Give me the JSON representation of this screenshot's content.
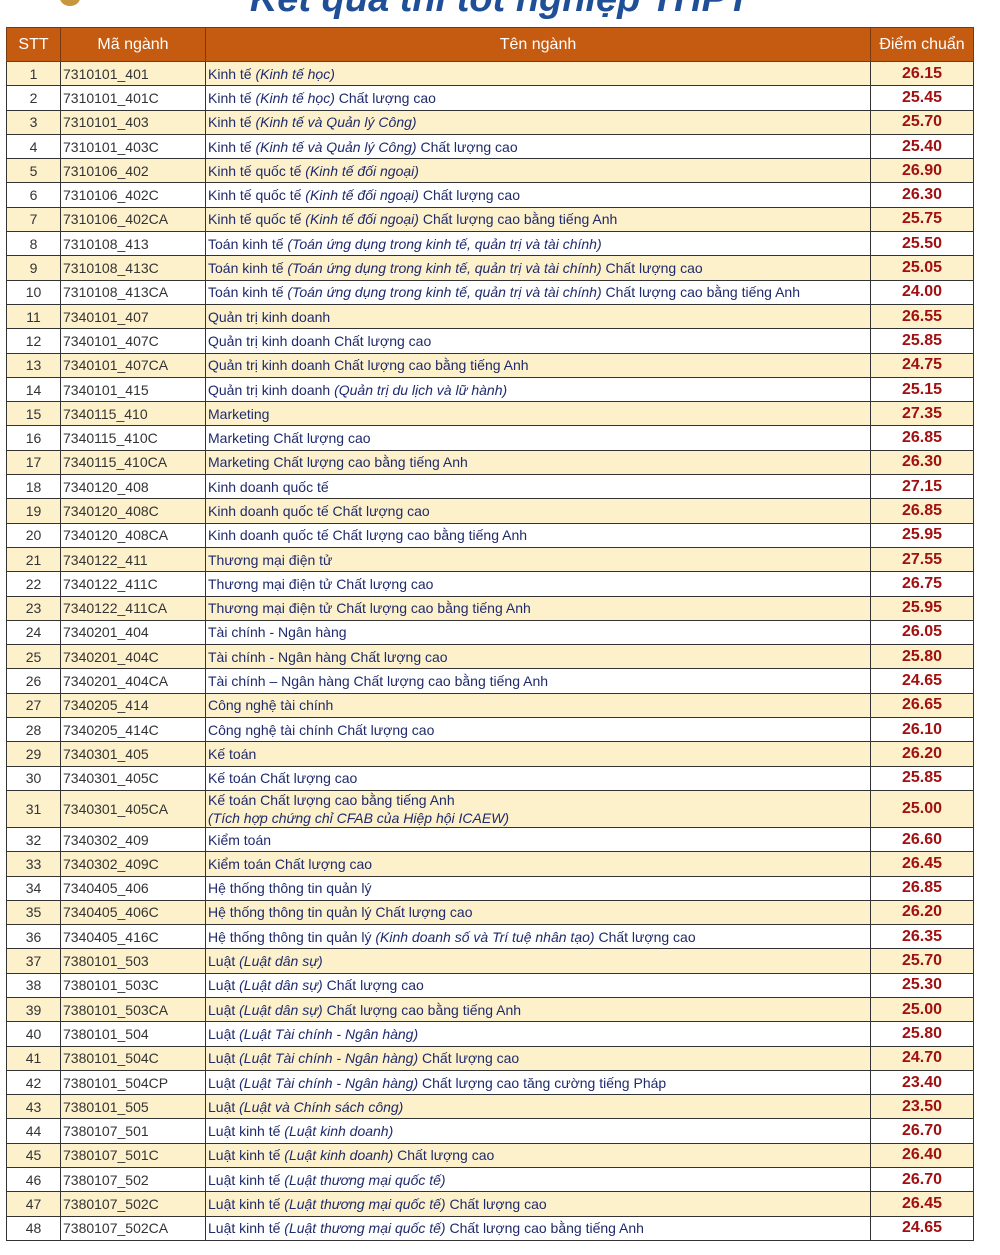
{
  "title": "Kết quả thi tốt nghiệp THPT",
  "headers": {
    "stt": "STT",
    "code": "Mã ngành",
    "name": "Tên ngành",
    "score": "Điểm chuẩn"
  },
  "colors": {
    "header": "#c55a11",
    "odd_row": "#fdf1cc",
    "score": "#a01010",
    "text": "#1f2a6b"
  },
  "rows": [
    {
      "stt": "1",
      "code": "7310101_401",
      "name": [
        [
          "Kinh tế ",
          0
        ],
        [
          "(Kinh tế học)",
          1
        ]
      ],
      "score": "26.15"
    },
    {
      "stt": "2",
      "code": "7310101_401C",
      "name": [
        [
          "Kinh tế ",
          0
        ],
        [
          "(Kinh tế học)",
          1
        ],
        [
          " Chất lượng cao",
          0
        ]
      ],
      "score": "25.45"
    },
    {
      "stt": "3",
      "code": "7310101_403",
      "name": [
        [
          "Kinh tế ",
          0
        ],
        [
          "(Kinh tế và Quản lý Công)",
          1
        ]
      ],
      "score": "25.70"
    },
    {
      "stt": "4",
      "code": "7310101_403C",
      "name": [
        [
          "Kinh tế ",
          0
        ],
        [
          "(Kinh tế và Quản lý Công)",
          1
        ],
        [
          " Chất lượng cao",
          0
        ]
      ],
      "score": "25.40"
    },
    {
      "stt": "5",
      "code": "7310106_402",
      "name": [
        [
          "Kinh tế quốc tế ",
          0
        ],
        [
          "(Kinh tế đối ngoại)",
          1
        ]
      ],
      "score": "26.90"
    },
    {
      "stt": "6",
      "code": "7310106_402C",
      "name": [
        [
          "Kinh tế quốc tế ",
          0
        ],
        [
          "(Kinh tế đối ngoại)",
          1
        ],
        [
          " Chất lượng cao",
          0
        ]
      ],
      "score": "26.30"
    },
    {
      "stt": "7",
      "code": "7310106_402CA",
      "name": [
        [
          "Kinh tế quốc tế ",
          0
        ],
        [
          "(Kinh tế đối ngoại)",
          1
        ],
        [
          " Chất lượng cao bằng tiếng Anh",
          0
        ]
      ],
      "score": "25.75"
    },
    {
      "stt": "8",
      "code": "7310108_413",
      "name": [
        [
          "Toán kinh tế ",
          0
        ],
        [
          "(Toán ứng dụng trong kinh tế, quản trị và tài chính)",
          1
        ]
      ],
      "score": "25.50"
    },
    {
      "stt": "9",
      "code": "7310108_413C",
      "name": [
        [
          "Toán kinh tế ",
          0
        ],
        [
          "(Toán ứng dụng trong kinh tế, quản trị và tài chính)",
          1
        ],
        [
          " Chất lượng cao",
          0
        ]
      ],
      "score": "25.05"
    },
    {
      "stt": "10",
      "code": "7310108_413CA",
      "name": [
        [
          "Toán kinh tế ",
          0
        ],
        [
          "(Toán ứng dụng trong kinh tế, quản trị và tài chính)",
          1
        ],
        [
          " Chất lượng cao bằng tiếng Anh",
          0
        ]
      ],
      "score": "24.00"
    },
    {
      "stt": "11",
      "code": "7340101_407",
      "name": [
        [
          "Quản trị kinh doanh",
          0
        ]
      ],
      "score": "26.55"
    },
    {
      "stt": "12",
      "code": "7340101_407C",
      "name": [
        [
          "Quản trị kinh doanh Chất lượng cao",
          0
        ]
      ],
      "score": "25.85"
    },
    {
      "stt": "13",
      "code": "7340101_407CA",
      "name": [
        [
          "Quản trị kinh doanh Chất lượng cao bằng tiếng Anh",
          0
        ]
      ],
      "score": "24.75"
    },
    {
      "stt": "14",
      "code": "7340101_415",
      "name": [
        [
          "Quản trị kinh doanh ",
          0
        ],
        [
          "(Quản trị du lịch và lữ hành)",
          1
        ]
      ],
      "score": "25.15"
    },
    {
      "stt": "15",
      "code": "7340115_410",
      "name": [
        [
          "Marketing",
          0
        ]
      ],
      "score": "27.35"
    },
    {
      "stt": "16",
      "code": "7340115_410C",
      "name": [
        [
          "Marketing Chất lượng cao",
          0
        ]
      ],
      "score": "26.85"
    },
    {
      "stt": "17",
      "code": "7340115_410CA",
      "name": [
        [
          "Marketing Chất lượng cao bằng tiếng Anh",
          0
        ]
      ],
      "score": "26.30"
    },
    {
      "stt": "18",
      "code": "7340120_408",
      "name": [
        [
          "Kinh doanh quốc tế",
          0
        ]
      ],
      "score": "27.15"
    },
    {
      "stt": "19",
      "code": "7340120_408C",
      "name": [
        [
          "Kinh doanh quốc tế Chất lượng cao",
          0
        ]
      ],
      "score": "26.85"
    },
    {
      "stt": "20",
      "code": "7340120_408CA",
      "name": [
        [
          "Kinh doanh quốc tế Chất lượng cao bằng tiếng Anh",
          0
        ]
      ],
      "score": "25.95"
    },
    {
      "stt": "21",
      "code": "7340122_411",
      "name": [
        [
          "Thương mại điện tử",
          0
        ]
      ],
      "score": "27.55"
    },
    {
      "stt": "22",
      "code": "7340122_411C",
      "name": [
        [
          "Thương mại điện tử Chất lượng cao",
          0
        ]
      ],
      "score": "26.75"
    },
    {
      "stt": "23",
      "code": "7340122_411CA",
      "name": [
        [
          "Thương mại điện tử Chất lượng cao bằng tiếng Anh",
          0
        ]
      ],
      "score": "25.95"
    },
    {
      "stt": "24",
      "code": "7340201_404",
      "name": [
        [
          "Tài chính - Ngân hàng",
          0
        ]
      ],
      "score": "26.05"
    },
    {
      "stt": "25",
      "code": "7340201_404C",
      "name": [
        [
          "Tài chính - Ngân hàng Chất lượng cao",
          0
        ]
      ],
      "score": "25.80"
    },
    {
      "stt": "26",
      "code": "7340201_404CA",
      "name": [
        [
          "Tài chính – Ngân hàng Chất lượng cao bằng tiếng Anh",
          0
        ]
      ],
      "score": "24.65"
    },
    {
      "stt": "27",
      "code": "7340205_414",
      "name": [
        [
          "Công nghệ tài chính",
          0
        ]
      ],
      "score": "26.65"
    },
    {
      "stt": "28",
      "code": "7340205_414C",
      "name": [
        [
          "Công nghệ tài chính Chất lượng cao",
          0
        ]
      ],
      "score": "26.10"
    },
    {
      "stt": "29",
      "code": "7340301_405",
      "name": [
        [
          "Kế toán",
          0
        ]
      ],
      "score": "26.20"
    },
    {
      "stt": "30",
      "code": "7340301_405C",
      "name": [
        [
          "Kế toán Chất lượng cao",
          0
        ]
      ],
      "score": "25.85"
    },
    {
      "stt": "31",
      "code": "7340301_405CA",
      "name": [
        [
          "Kế toán Chất lượng cao bằng tiếng Anh",
          0
        ],
        [
          "\n",
          2
        ],
        [
          "(Tích hợp chứng chỉ CFAB của Hiệp hội ICAEW)",
          1
        ]
      ],
      "score": "25.00"
    },
    {
      "stt": "32",
      "code": "7340302_409",
      "name": [
        [
          "Kiểm toán",
          0
        ]
      ],
      "score": "26.60"
    },
    {
      "stt": "33",
      "code": "7340302_409C",
      "name": [
        [
          "Kiểm toán Chất lượng cao",
          0
        ]
      ],
      "score": "26.45"
    },
    {
      "stt": "34",
      "code": "7340405_406",
      "name": [
        [
          "Hệ thống thông tin quản lý",
          0
        ]
      ],
      "score": "26.85"
    },
    {
      "stt": "35",
      "code": "7340405_406C",
      "name": [
        [
          "Hệ thống thông tin quản lý Chất lượng cao",
          0
        ]
      ],
      "score": "26.20"
    },
    {
      "stt": "36",
      "code": "7340405_416C",
      "name": [
        [
          "Hệ thống thông tin quản lý ",
          0
        ],
        [
          "(Kinh doanh số và Trí tuệ nhân tạo)",
          1
        ],
        [
          " Chất lượng cao",
          0
        ]
      ],
      "score": "26.35"
    },
    {
      "stt": "37",
      "code": "7380101_503",
      "name": [
        [
          "Luật ",
          0
        ],
        [
          "(Luật dân sự)",
          1
        ]
      ],
      "score": "25.70"
    },
    {
      "stt": "38",
      "code": "7380101_503C",
      "name": [
        [
          "Luật ",
          0
        ],
        [
          "(Luật dân sự)",
          1
        ],
        [
          " Chất lượng cao",
          0
        ]
      ],
      "score": "25.30"
    },
    {
      "stt": "39",
      "code": "7380101_503CA",
      "name": [
        [
          "Luật ",
          0
        ],
        [
          "(Luật dân sự)",
          1
        ],
        [
          " Chất lượng cao bằng tiếng Anh",
          0
        ]
      ],
      "score": "25.00"
    },
    {
      "stt": "40",
      "code": "7380101_504",
      "name": [
        [
          "Luật ",
          0
        ],
        [
          "(Luật Tài chính - Ngân hàng)",
          1
        ]
      ],
      "score": "25.80"
    },
    {
      "stt": "41",
      "code": "7380101_504C",
      "name": [
        [
          "Luật ",
          0
        ],
        [
          "(Luật Tài chính - Ngân hàng)",
          1
        ],
        [
          " Chất lượng cao",
          0
        ]
      ],
      "score": "24.70"
    },
    {
      "stt": "42",
      "code": "7380101_504CP",
      "name": [
        [
          "Luật ",
          0
        ],
        [
          "(Luật Tài chính - Ngân hàng)",
          1
        ],
        [
          " Chất lượng cao tăng cường tiếng Pháp",
          0
        ]
      ],
      "score": "23.40"
    },
    {
      "stt": "43",
      "code": "7380101_505",
      "name": [
        [
          "Luật ",
          0
        ],
        [
          "(Luật và Chính sách công)",
          1
        ]
      ],
      "score": "23.50"
    },
    {
      "stt": "44",
      "code": "7380107_501",
      "name": [
        [
          "Luật kinh tế ",
          0
        ],
        [
          "(Luật kinh doanh)",
          1
        ]
      ],
      "score": "26.70"
    },
    {
      "stt": "45",
      "code": "7380107_501C",
      "name": [
        [
          "Luật kinh tế ",
          0
        ],
        [
          "(Luật kinh doanh)",
          1
        ],
        [
          " Chất lượng cao",
          0
        ]
      ],
      "score": "26.40"
    },
    {
      "stt": "46",
      "code": "7380107_502",
      "name": [
        [
          "Luật kinh tế ",
          0
        ],
        [
          "(Luật thương mại quốc tế)",
          1
        ]
      ],
      "score": "26.70"
    },
    {
      "stt": "47",
      "code": "7380107_502C",
      "name": [
        [
          "Luật kinh tế ",
          0
        ],
        [
          "(Luật thương mại quốc tế)",
          1
        ],
        [
          " Chất lượng cao",
          0
        ]
      ],
      "score": "26.45"
    },
    {
      "stt": "48",
      "code": "7380107_502CA",
      "name": [
        [
          "Luật kinh tế ",
          0
        ],
        [
          "(Luật thương mại quốc tế)",
          1
        ],
        [
          " Chất lượng cao bằng tiếng Anh",
          0
        ]
      ],
      "score": "24.65"
    }
  ]
}
